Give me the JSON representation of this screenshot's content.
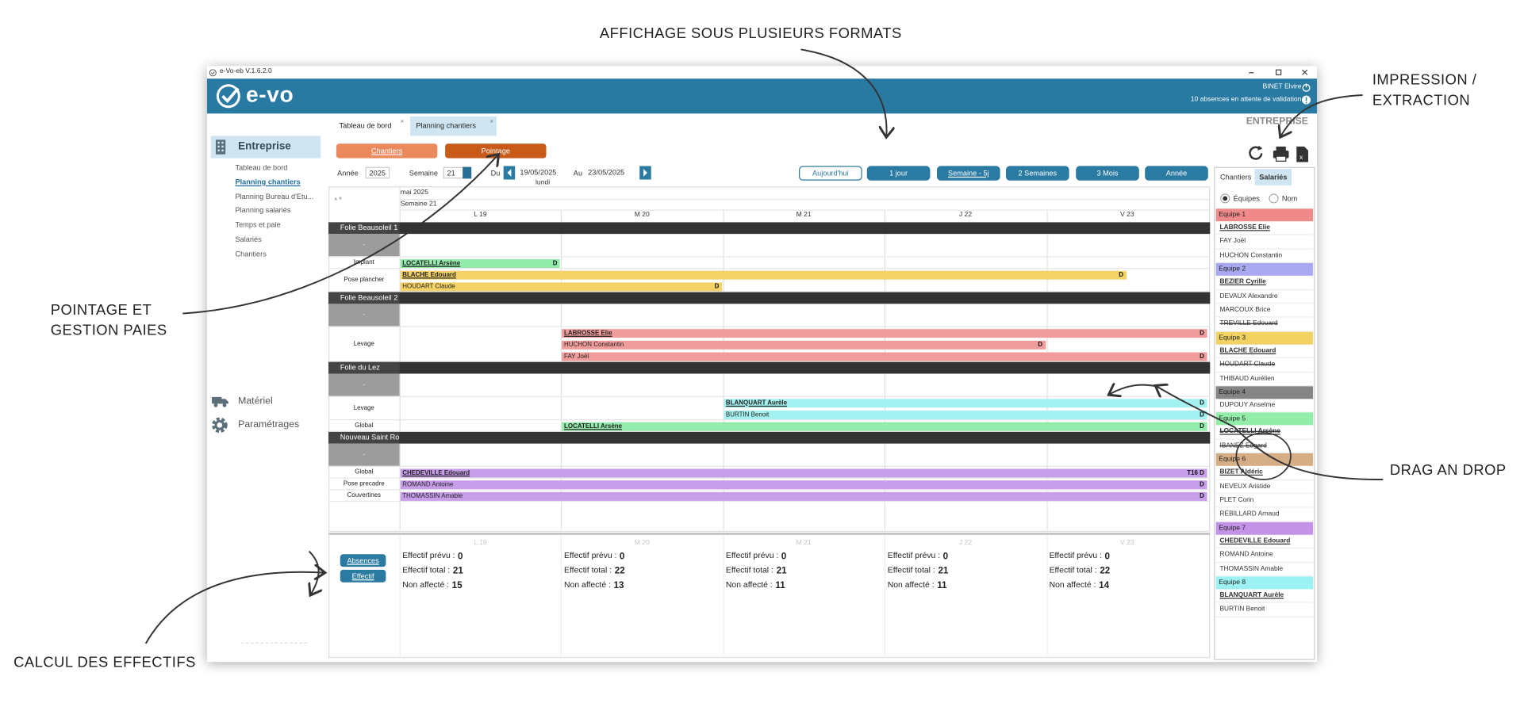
{
  "annotations": {
    "formats": "AFFICHAGE SOUS PLUSIEURS FORMATS",
    "print": "IMPRESSION /\nEXTRACTION",
    "pointage": "POINTAGE ET\nGESTION PAIES",
    "drag": "DRAG AN DROP",
    "effectifs": "CALCUL DES EFFECTIFS"
  },
  "window": {
    "title": "e-Vo-eb V.1.6.2.0",
    "logo": "e-vo",
    "user": "BINET Elvire",
    "notice": "10 absences en attente de validation",
    "context": "ENTREPRISE"
  },
  "sidebar": {
    "section": "Entreprise",
    "items": [
      "Tableau de bord",
      "Planning chantiers",
      "Planning Bureau d'Etu...",
      "Planning salariés",
      "Temps et paie",
      "Salariés",
      "Chantiers"
    ],
    "active": 1,
    "extra": [
      "Matériel",
      "Paramétrages"
    ]
  },
  "tabs": {
    "items": [
      "Tableau de bord",
      "Planning chantiers"
    ],
    "active": 1
  },
  "modes": [
    "Chantiers",
    "Pointage"
  ],
  "filters": {
    "year_label": "Année",
    "year": "2025",
    "week_label": "Semaine",
    "week": "21",
    "from_label": "Du",
    "from": "19/05/2025",
    "to_label": "Au",
    "to": "23/05/2025",
    "weekday": "lundi"
  },
  "views": {
    "items": [
      "Aujourd'hui",
      "1 jour",
      "Semaine - 5j",
      "2 Semaines",
      "3 Mois",
      "Année"
    ],
    "active": 2
  },
  "planning": {
    "month": "mai 2025",
    "week": "Semaine 21",
    "days": [
      "L 19",
      "M 20",
      "M 21",
      "J 22",
      "V 23"
    ],
    "sites": [
      {
        "name": "Folie Beausoleil 1",
        "rows": [
          {
            "label": "-",
            "bars": []
          },
          {
            "label": "Implant",
            "bars": [
              {
                "name": "LOCATELLI Arsène",
                "lead": true,
                "start": 0,
                "end": 1,
                "color": "#93ecab",
                "flag": "D"
              }
            ]
          },
          {
            "label": "Pose plancher",
            "bars": [
              {
                "name": "BLACHE Edouard",
                "lead": true,
                "start": 0,
                "end": 4.5,
                "color": "#f4d266",
                "flag": "D"
              },
              {
                "name": "HOUDART Claude",
                "lead": false,
                "start": 0,
                "end": 2,
                "color": "#f4d266",
                "flag": "D"
              }
            ]
          }
        ]
      },
      {
        "name": "Folie Beausoleil 2",
        "rows": [
          {
            "label": "-",
            "bars": []
          },
          {
            "label": "Levage",
            "bars": [
              {
                "name": "LABROSSE Elie",
                "lead": true,
                "start": 1,
                "end": 5,
                "color": "#f19c9c",
                "flag": "D"
              },
              {
                "name": "HUCHON Constantin",
                "lead": false,
                "start": 1,
                "end": 4,
                "color": "#f19c9c",
                "flag": "D"
              },
              {
                "name": "FAY Joël",
                "lead": false,
                "start": 1,
                "end": 5,
                "color": "#f19c9c",
                "flag": "D"
              }
            ]
          }
        ]
      },
      {
        "name": "Folie du Lez",
        "rows": [
          {
            "label": "-",
            "bars": []
          },
          {
            "label": "Levage",
            "bars": [
              {
                "name": "BLANQUART Aurèle",
                "lead": true,
                "start": 2,
                "end": 5,
                "color": "#a4f1f1",
                "flag": "D"
              },
              {
                "name": "BURTIN Benoit",
                "lead": false,
                "start": 2,
                "end": 5,
                "color": "#a4f1f1",
                "flag": "D"
              }
            ]
          },
          {
            "label": "Global",
            "bars": [
              {
                "name": "LOCATELLI Arsène",
                "lead": true,
                "start": 1,
                "end": 5,
                "color": "#93ecab",
                "flag": "D"
              }
            ]
          }
        ]
      },
      {
        "name": "Nouveau Saint Ro",
        "rows": [
          {
            "label": "-",
            "bars": []
          },
          {
            "label": "Global",
            "bars": [
              {
                "name": "CHEDEVILLE Edouard",
                "lead": true,
                "start": 0,
                "end": 5,
                "color": "#c79ee9",
                "flag": "T16 D"
              }
            ]
          },
          {
            "label": "Pose precadre",
            "bars": [
              {
                "name": "ROMAND Antoine",
                "lead": false,
                "start": 0,
                "end": 5,
                "color": "#c79ee9",
                "flag": "D"
              }
            ]
          },
          {
            "label": "Couvertines",
            "bars": [
              {
                "name": "THOMASSIN Amable",
                "lead": false,
                "start": 0,
                "end": 5,
                "color": "#c79ee9",
                "flag": "D"
              }
            ]
          }
        ]
      }
    ]
  },
  "summary": {
    "buttons": [
      "Absences",
      "Effectif"
    ],
    "labels": [
      "Effectif prévu :",
      "Effectif total :",
      "Non affecté :"
    ],
    "values": [
      [
        0,
        0,
        0,
        0,
        0
      ],
      [
        21,
        22,
        21,
        21,
        22
      ],
      [
        15,
        13,
        11,
        11,
        14
      ]
    ]
  },
  "staff": {
    "tabs": [
      "Chantiers",
      "Salariés"
    ],
    "active_tab": 1,
    "options": [
      "Équipes",
      "Nom"
    ],
    "teams": [
      {
        "name": "Equipe 1",
        "color": "#f08a8a",
        "members": [
          {
            "name": "LABROSSE Elie",
            "lead": true
          },
          {
            "name": "FAY Joël"
          },
          {
            "name": "HUCHON Constantin"
          }
        ]
      },
      {
        "name": "Equipe 2",
        "color": "#a9a9f2",
        "members": [
          {
            "name": "BEZIER Cyrille",
            "lead": true
          },
          {
            "name": "DEVAUX Alexandre"
          },
          {
            "name": "MARCOUX Brice"
          },
          {
            "name": "TREVILLE Edouard",
            "struck": true
          }
        ]
      },
      {
        "name": "Equipe 3",
        "color": "#f1d262",
        "members": [
          {
            "name": "BLACHE Edouard",
            "lead": true
          },
          {
            "name": "HOUDART Claude",
            "struck": true
          },
          {
            "name": "THIBAUD Aurélien"
          }
        ]
      },
      {
        "name": "Equipe 4",
        "color": "#858585",
        "members": [
          {
            "name": "DUPOUY Anselme"
          }
        ]
      },
      {
        "name": "Equipe 5",
        "color": "#92eda8",
        "members": [
          {
            "name": "LOCATELLI Arsène",
            "lead": true,
            "struck": true
          },
          {
            "name": "IBANEZ Edgard",
            "struck": true
          }
        ]
      },
      {
        "name": "Equipe 6",
        "color": "#d6ae86",
        "members": [
          {
            "name": "BIZET Aldéric",
            "lead": true
          },
          {
            "name": "NEVEUX Aristide"
          },
          {
            "name": "PLET Corin"
          },
          {
            "name": "REBILLARD Arnaud"
          }
        ]
      },
      {
        "name": "Equipe 7",
        "color": "#c492e6",
        "members": [
          {
            "name": "CHEDEVILLE Edouard",
            "lead": true
          },
          {
            "name": "ROMAND Antoine"
          },
          {
            "name": "THOMASSIN Amable"
          }
        ]
      },
      {
        "name": "Equipe 8",
        "color": "#9cf2f2",
        "members": [
          {
            "name": "BLANQUART Aurèle",
            "lead": true
          },
          {
            "name": "BURTIN Benoit"
          }
        ]
      }
    ]
  }
}
